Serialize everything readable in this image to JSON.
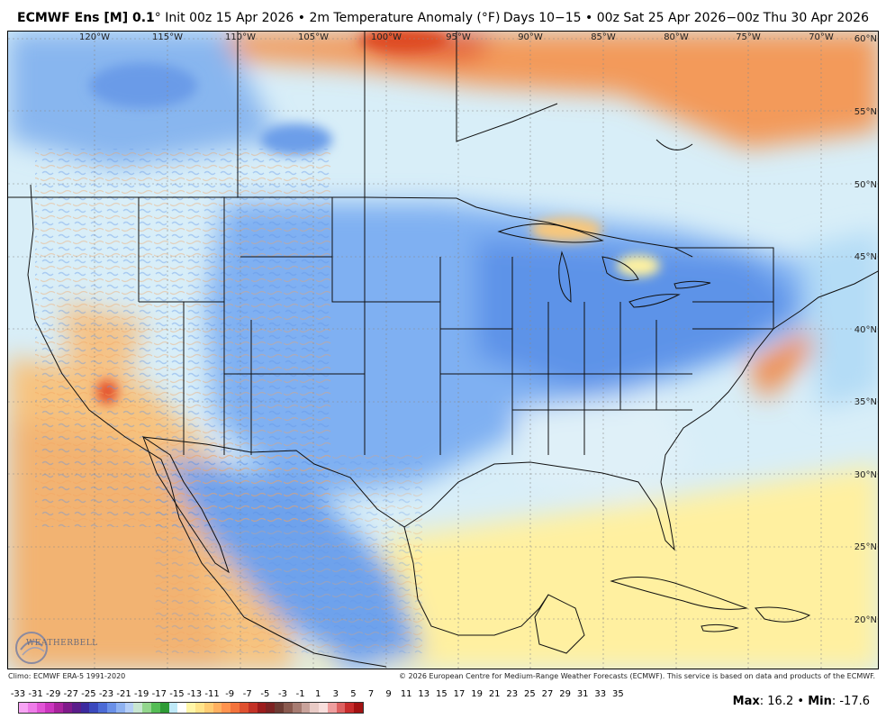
{
  "header": {
    "model": "ECMWF Ens [M] 0.1",
    "degree": "°",
    "init": "Init 00z 15 Apr 2026",
    "bullet": "•",
    "field": "2m Temperature Anomaly (°F)",
    "period": "Days 10−15 • 00z Sat 25 Apr 2026−00z Thu 30 Apr 2026"
  },
  "map": {
    "lon_labels": [
      "120°W",
      "115°W",
      "110°W",
      "105°W",
      "100°W",
      "95°W",
      "90°W",
      "85°W",
      "80°W",
      "75°W",
      "70°W"
    ],
    "lat_labels": [
      "60°N",
      "55°N",
      "50°N",
      "45°N",
      "40°N",
      "35°N",
      "30°N",
      "25°N",
      "20°N"
    ],
    "colors": {
      "cold_strong": "#4f86e6",
      "cold_medium": "#7fb0f2",
      "cold_light": "#acd9f6",
      "neutral": "#eef7fb",
      "warm_light": "#fff4ad",
      "warm_medium": "#f7c27e",
      "warm_strong": "#f08a4b",
      "hot": "#e4552d"
    }
  },
  "footer": {
    "climo": "Climo: ECMWF ERA-5 1991-2020",
    "copyright": "© 2026 European Centre for Medium-Range Weather Forecasts (ECMWF). This service is based on data and products of the ECMWF."
  },
  "scale": {
    "labels": [
      "-33",
      "-31",
      "-29",
      "-27",
      "-25",
      "-23",
      "-21",
      "-19",
      "-17",
      "-15",
      "-13",
      "-11",
      "-9",
      "-7",
      "-5",
      "-3",
      "-1",
      "1",
      "3",
      "5",
      "7",
      "9",
      "11",
      "13",
      "15",
      "17",
      "19",
      "21",
      "23",
      "25",
      "27",
      "29",
      "31",
      "33",
      "35"
    ],
    "colors": [
      "#f7a4f4",
      "#ee7ce8",
      "#e255d6",
      "#cc36bf",
      "#a9239d",
      "#7f1a8a",
      "#5a1d8a",
      "#3c2a9e",
      "#3b49bd",
      "#4c6bd6",
      "#6a90e8",
      "#8fb2f1",
      "#b5cff7",
      "#c8e6d1",
      "#93d68d",
      "#55bd55",
      "#2e9b35",
      "#bfe9f7",
      "#ffffff",
      "#fff6a8",
      "#ffe48a",
      "#ffcc73",
      "#ffb060",
      "#ff934e",
      "#f3733c",
      "#df5130",
      "#c33226",
      "#9c1c1c",
      "#7d2222",
      "#6d3b33",
      "#8a5a4f",
      "#a77c72",
      "#c9a39b",
      "#e9cbc6",
      "#f8dedc",
      "#ef9e9e",
      "#de6161",
      "#c82c2c",
      "#a31212"
    ]
  },
  "stats": {
    "max_label": "Max",
    "max_value": "16.2",
    "separator": "•",
    "min_label": "Min",
    "min_value": "-17.6"
  },
  "logo": {
    "text": "WEATHERBELL"
  }
}
